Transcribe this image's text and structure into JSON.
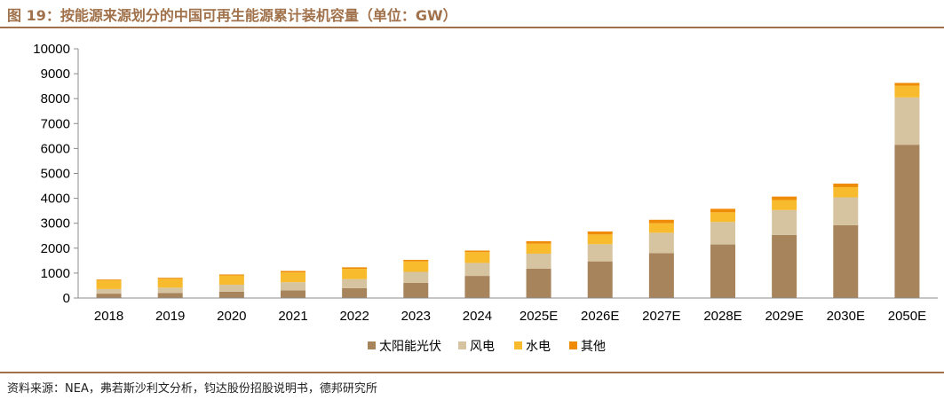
{
  "header": {
    "title": "图 19：按能源来源划分的中国可再生能源累计装机容量（单位：GW）"
  },
  "footer": {
    "source": "资料来源：NEA，弗若斯沙利文分析，钧达股份招股说明书，德邦研究所"
  },
  "colors": {
    "solar": "#a8845c",
    "wind": "#d6c4a1",
    "hydro": "#f7bb2d",
    "other": "#ef8b06",
    "title": "#a0714a"
  },
  "chart_data": {
    "type": "bar",
    "stacked": true,
    "title": "",
    "xlabel": "",
    "ylabel": "",
    "categories": [
      "2018",
      "2019",
      "2020",
      "2021",
      "2022",
      "2023",
      "2024",
      "2025E",
      "2026E",
      "2027E",
      "2028E",
      "2029E",
      "2030E",
      "2050E"
    ],
    "series": [
      {
        "name": "太阳能光伏",
        "values": [
          175,
          205,
          253,
          307,
          393,
          609,
          887,
          1180,
          1470,
          1800,
          2150,
          2530,
          2920,
          6150
        ]
      },
      {
        "name": "风电",
        "values": [
          184,
          210,
          282,
          328,
          365,
          441,
          521,
          600,
          690,
          820,
          900,
          1000,
          1120,
          1900
        ]
      },
      {
        "name": "水电",
        "values": [
          352,
          356,
          370,
          391,
          414,
          422,
          436,
          400,
          390,
          380,
          390,
          400,
          410,
          470
        ]
      },
      {
        "name": "其他",
        "values": [
          30,
          40,
          40,
          60,
          60,
          60,
          60,
          100,
          120,
          140,
          140,
          140,
          140,
          110
        ]
      }
    ],
    "ylim": [
      0,
      10000
    ],
    "yticks": [
      0,
      1000,
      2000,
      3000,
      4000,
      5000,
      6000,
      7000,
      8000,
      9000,
      10000
    ],
    "grid": false,
    "legend_position": "bottom"
  }
}
